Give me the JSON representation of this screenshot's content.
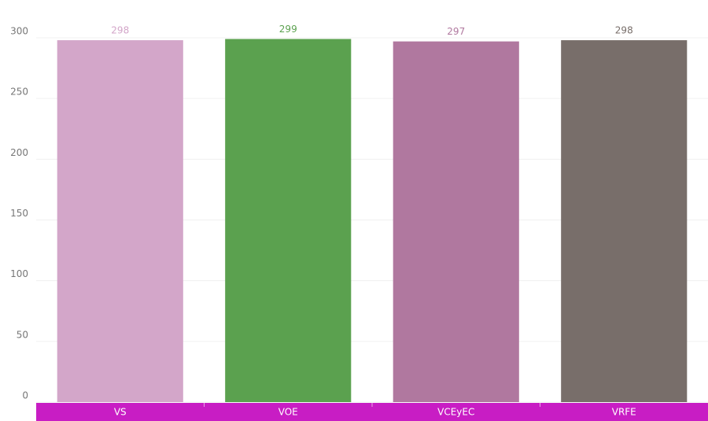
{
  "chart_data": {
    "type": "bar",
    "categories": [
      "VS",
      "VOE",
      "VCEyEC",
      "VRFE"
    ],
    "values": [
      298,
      299,
      297,
      298
    ],
    "colors": [
      "#d3a6c9",
      "#5ba14f",
      "#b0789f",
      "#786e6a"
    ],
    "ylim": [
      0,
      300
    ],
    "yticks": [
      0,
      50,
      100,
      150,
      200,
      250,
      300
    ],
    "grid": true,
    "category_band_color": "#c81dc4"
  }
}
